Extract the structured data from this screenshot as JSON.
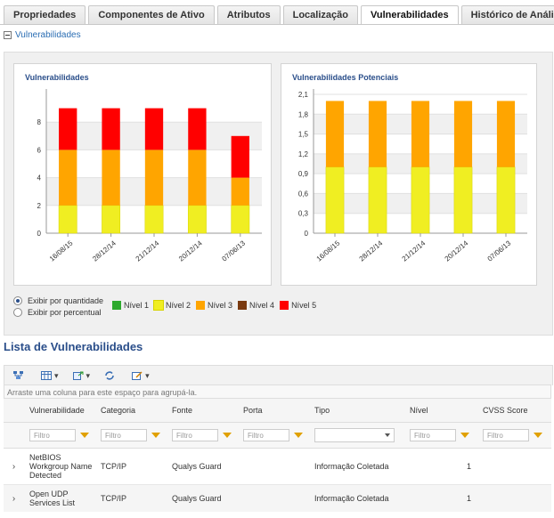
{
  "tabs": [
    "Propriedades",
    "Componentes de Ativo",
    "Atributos",
    "Localização",
    "Vulnerabilidades",
    "Histórico de Análises"
  ],
  "section_toggle": "Vulnerabilidades",
  "chart_data": [
    {
      "type": "bar",
      "title": "Vulnerabilidades",
      "categories": [
        "16/08/15",
        "28/12/14",
        "21/12/14",
        "20/12/14",
        "07/06/13"
      ],
      "series": [
        {
          "name": "Nível 2",
          "values": [
            2,
            2,
            2,
            2,
            2
          ]
        },
        {
          "name": "Nível 3",
          "values": [
            4,
            4,
            4,
            4,
            2
          ]
        },
        {
          "name": "Nível 5",
          "values": [
            3,
            3,
            3,
            3,
            3
          ]
        }
      ],
      "ylim": [
        0,
        10
      ],
      "yticks": [
        "0",
        "2",
        "4",
        "6",
        "8"
      ]
    },
    {
      "type": "bar",
      "title": "Vulnerabilidades Potenciais",
      "categories": [
        "16/08/15",
        "28/12/14",
        "21/12/14",
        "20/12/14",
        "07/06/13"
      ],
      "series": [
        {
          "name": "Nível 2",
          "values": [
            1,
            1,
            1,
            1,
            1
          ]
        },
        {
          "name": "Nível 3",
          "values": [
            1,
            1,
            1,
            1,
            1
          ]
        }
      ],
      "ylim": [
        0,
        2.1
      ],
      "yticks": [
        "0",
        "0,3",
        "0,6",
        "0,9",
        "1,2",
        "1,5",
        "1,8",
        "2,1"
      ]
    }
  ],
  "colors": {
    "Nível 1": "#2eaa2e",
    "Nível 2": "#f0ee22",
    "Nível 3": "#ffa500",
    "Nível 4": "#7a3a10",
    "Nível 5": "#ff0000"
  },
  "options": [
    "Exibir por quantidade",
    "Exibir por percentual"
  ],
  "legend": [
    "Nível 1",
    "Nível 2",
    "Nível 3",
    "Nível 4",
    "Nível 5"
  ],
  "list_title": "Lista de Vulnerabilidades",
  "group_hint": "Arraste uma coluna para este espaço para agrupá-la.",
  "columns": [
    "Vulnerabilidade",
    "Categoria",
    "Fonte",
    "Porta",
    "Tipo",
    "Nível",
    "CVSS Score"
  ],
  "filter_placeholder": "Filtro",
  "rows": [
    {
      "vulnerabilidade": "NetBIOS Workgroup Name Detected",
      "categoria": "TCP/IP",
      "fonte": "Qualys Guard",
      "porta": "",
      "tipo": "Informação Coletada",
      "nivel": "1",
      "cvss": ""
    },
    {
      "vulnerabilidade": "Open UDP Services List",
      "categoria": "TCP/IP",
      "fonte": "Qualys Guard",
      "porta": "",
      "tipo": "Informação Coletada",
      "nivel": "1",
      "cvss": ""
    }
  ]
}
